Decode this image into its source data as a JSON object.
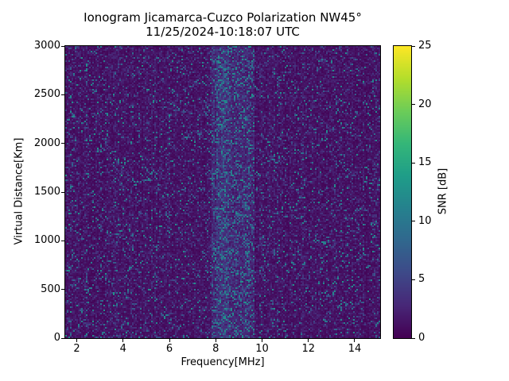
{
  "figure": {
    "background": "#ffffff"
  },
  "chart_data": {
    "type": "heatmap",
    "title": "Ionogram Jicamarca-Cuzco Polarization NW45°",
    "subtitle": "11/25/2024-10:18:07 UTC",
    "xlabel": "Frequency[MHz]",
    "ylabel": "Virtual Distance[Km]",
    "xlim": [
      1.5,
      15.1
    ],
    "ylim": [
      0,
      3000
    ],
    "x_ticks": [
      2,
      4,
      6,
      8,
      10,
      12,
      14
    ],
    "y_ticks": [
      0,
      500,
      1000,
      1500,
      2000,
      2500,
      3000
    ],
    "grid": false,
    "colormap": "viridis",
    "colorbar": {
      "label": "SNR [dB]",
      "min": 0,
      "max": 25,
      "ticks": [
        0,
        5,
        10,
        15,
        20,
        25
      ]
    },
    "data_summary": {
      "description": "Speckled noise field: background SNR mostly 0-3 dB (dark purple) with sparse 5-13 dB blue/teal speckles scattered across all frequencies and virtual distances; an enhanced vertical band of higher SNR and denser speckles near 7.8-9.7 MHz; faint vertical striping of speckle density at other frequencies; no coherent ionogram trace visible.",
      "background_snr_db": [
        0,
        3
      ],
      "speckle_snr_db": [
        5,
        13
      ],
      "enhanced_band_mhz": [
        7.8,
        9.7
      ]
    }
  }
}
